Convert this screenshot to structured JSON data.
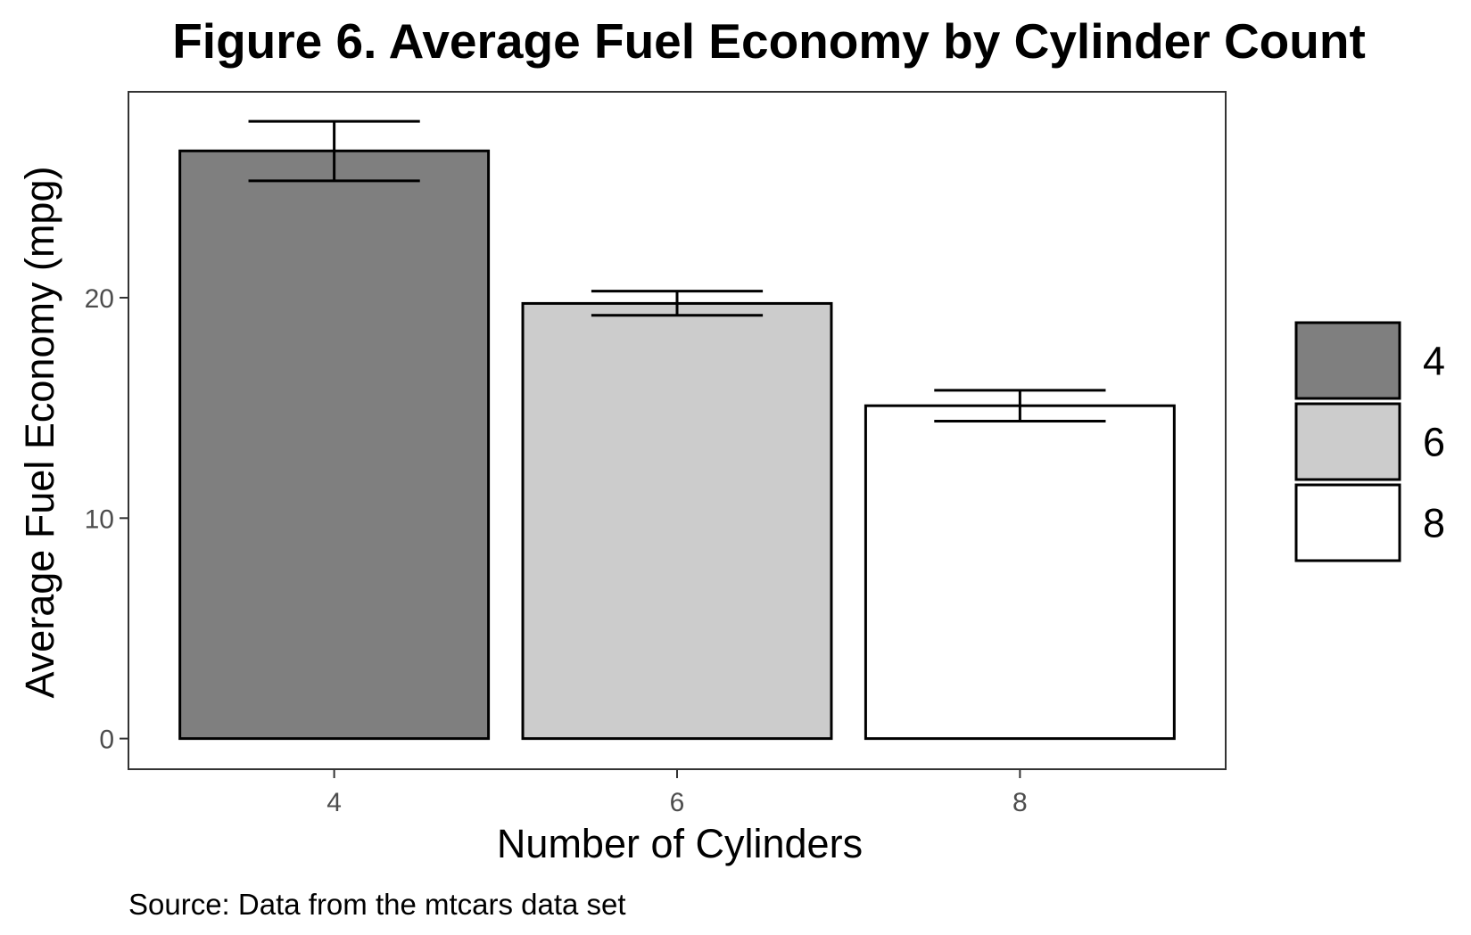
{
  "chart_data": {
    "type": "bar",
    "title": "Figure 6. Average Fuel Economy by Cylinder Count",
    "xlabel": "Number of Cylinders",
    "ylabel": "Average Fuel Economy (mpg)",
    "caption": "Source: Data from the mtcars data set",
    "categories": [
      "4",
      "6",
      "8"
    ],
    "values": [
      26.66,
      19.74,
      15.1
    ],
    "error_bars": [
      {
        "low": 25.3,
        "high": 28.0
      },
      {
        "low": 19.2,
        "high": 20.3
      },
      {
        "low": 14.4,
        "high": 15.8
      }
    ],
    "fill_colors": [
      "#7f7f7f",
      "#cccccc",
      "#ffffff"
    ],
    "yticks": [
      0,
      10,
      20
    ],
    "ylim": [
      -1.39,
      29.34
    ],
    "grid": false,
    "legend": {
      "position": "right",
      "entries": [
        {
          "label": "4",
          "color": "#7f7f7f"
        },
        {
          "label": "6",
          "color": "#cccccc"
        },
        {
          "label": "8",
          "color": "#ffffff"
        }
      ]
    }
  }
}
